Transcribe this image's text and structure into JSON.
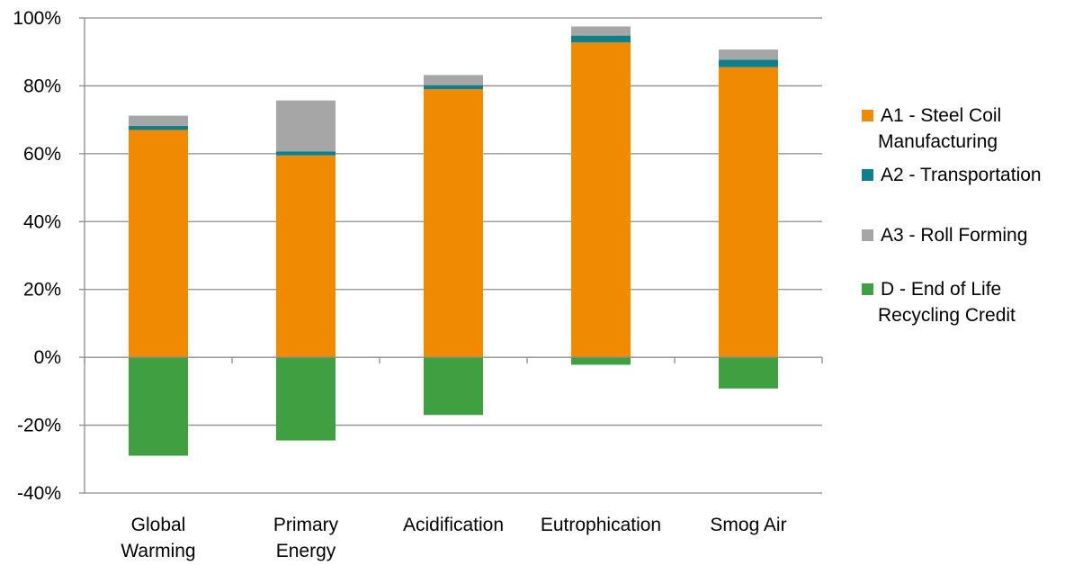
{
  "chart_data": {
    "type": "bar",
    "stacked": true,
    "categories": [
      [
        "Global",
        "Warming"
      ],
      [
        "Primary",
        "Energy"
      ],
      [
        "Acidification"
      ],
      [
        "Eutrophication"
      ],
      [
        "Smog Air"
      ]
    ],
    "series": [
      {
        "name": [
          "A1 - Steel Coil",
          "Manufacturing"
        ],
        "color": "#F08A00",
        "values": [
          67,
          59.5,
          79,
          92.8,
          85.5
        ]
      },
      {
        "name": [
          "A2 - Transportation"
        ],
        "color": "#0F7F8C",
        "values": [
          1.2,
          1.2,
          1.2,
          2.0,
          2.2
        ]
      },
      {
        "name": [
          "A3 - Roll Forming"
        ],
        "color": "#A6A6A6",
        "values": [
          3.0,
          15.0,
          3.0,
          2.7,
          3.0
        ]
      },
      {
        "name": [
          "D - End of Life",
          "Recycling Credit"
        ],
        "color": "#3EA040",
        "values": [
          -29,
          -24.5,
          -17,
          -2.2,
          -9.2
        ]
      }
    ],
    "yticks": [
      "100%",
      "80%",
      "60%",
      "40%",
      "20%",
      "0%",
      "-20%",
      "-40%"
    ],
    "ylim": [
      -40,
      100
    ],
    "grid": true,
    "legend_position": "right",
    "title": "",
    "xlabel": "",
    "ylabel": ""
  }
}
